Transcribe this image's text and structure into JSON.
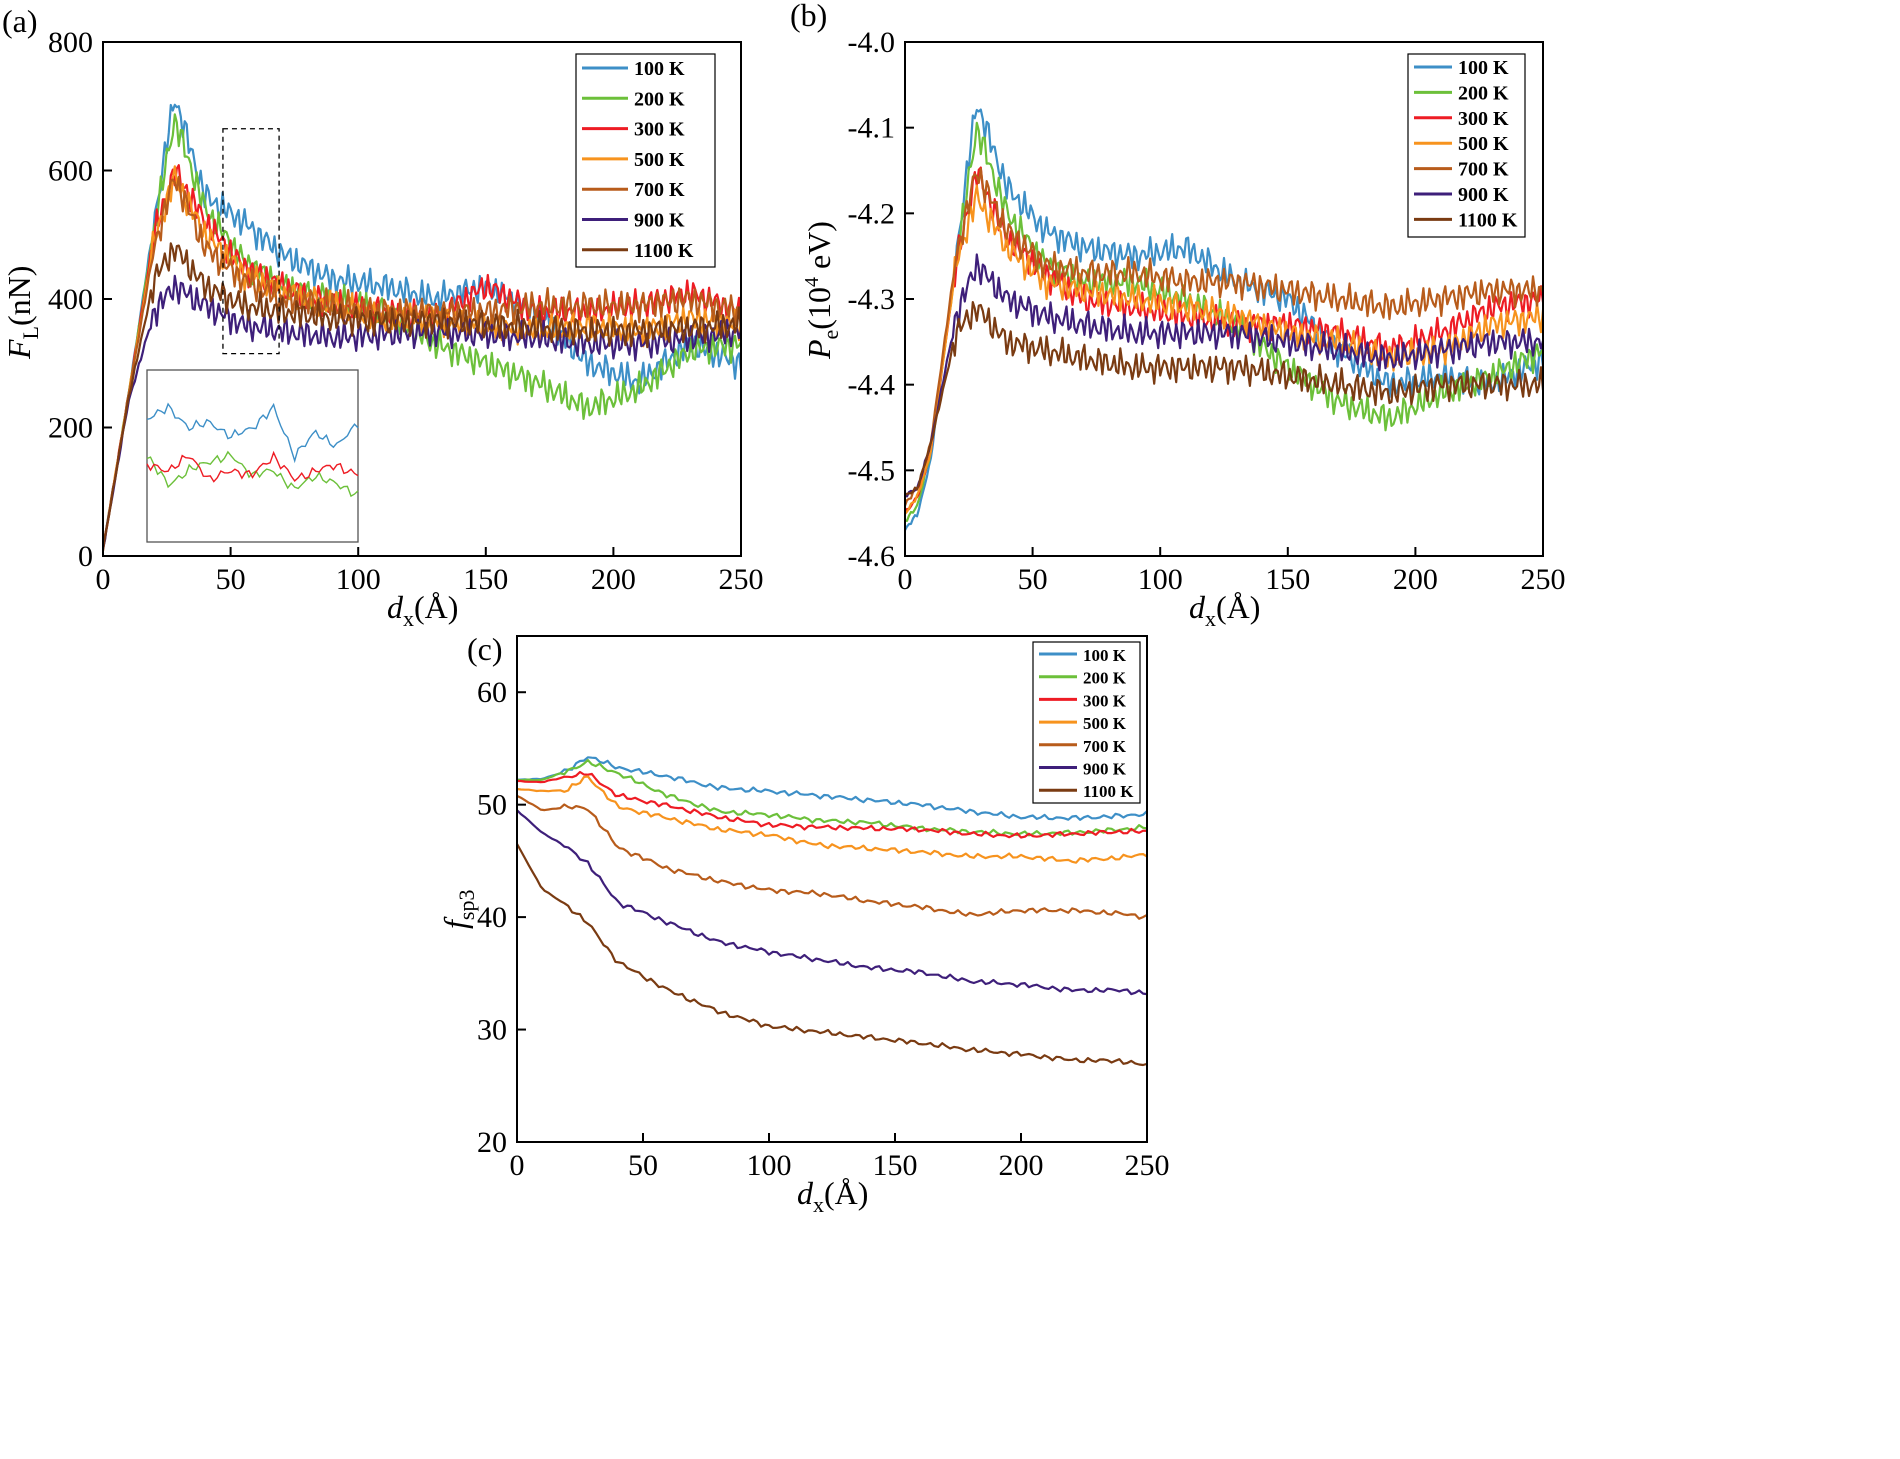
{
  "colors": {
    "100 K": "#3d8fc7",
    "200 K": "#6cc03a",
    "300 K": "#ee1c24",
    "500 K": "#f7931e",
    "700 K": "#b85c1b",
    "900 K": "#3e1f7a",
    "1100 K": "#7a3b12"
  },
  "chart_data": [
    {
      "panel_label": "(a)",
      "type": "line",
      "xlabel": "d",
      "xlabel_sub": "x",
      "xlabel_unit": "(Å)",
      "ylabel": "F",
      "ylabel_sub": "L",
      "ylabel_unit": "(nN)",
      "xlim": [
        0,
        250
      ],
      "ylim": [
        0,
        800
      ],
      "xticks": [
        "0",
        "50",
        "100",
        "150",
        "200",
        "250"
      ],
      "yticks": [
        "0",
        "200",
        "400",
        "600",
        "800"
      ],
      "legend_position": "top-right",
      "x": [
        0,
        10,
        20,
        28,
        40,
        55,
        70,
        90,
        110,
        130,
        150,
        170,
        190,
        210,
        230,
        250
      ],
      "series": [
        {
          "name": "100 K",
          "values": [
            10,
            250,
            520,
            715,
            560,
            520,
            470,
            430,
            420,
            400,
            420,
            380,
            300,
            270,
            330,
            300
          ]
        },
        {
          "name": "200 K",
          "values": [
            10,
            250,
            510,
            680,
            540,
            460,
            420,
            400,
            380,
            330,
            300,
            270,
            230,
            260,
            320,
            330
          ]
        },
        {
          "name": "300 K",
          "values": [
            10,
            250,
            500,
            600,
            520,
            450,
            420,
            390,
            380,
            370,
            420,
            380,
            380,
            390,
            410,
            380
          ]
        },
        {
          "name": "500 K",
          "values": [
            10,
            250,
            490,
            590,
            500,
            440,
            410,
            390,
            370,
            370,
            360,
            350,
            360,
            350,
            370,
            360
          ]
        },
        {
          "name": "700 K",
          "values": [
            10,
            250,
            480,
            590,
            480,
            430,
            400,
            390,
            380,
            380,
            380,
            390,
            390,
            390,
            400,
            380
          ]
        },
        {
          "name": "900 K",
          "values": [
            10,
            240,
            380,
            420,
            390,
            360,
            350,
            340,
            345,
            350,
            345,
            340,
            330,
            330,
            340,
            350
          ]
        },
        {
          "name": "1100 K",
          "values": [
            10,
            245,
            430,
            480,
            420,
            390,
            380,
            370,
            365,
            365,
            360,
            355,
            350,
            350,
            355,
            360
          ]
        }
      ],
      "inset": {
        "type": "line",
        "series": [
          {
            "name": "100 K",
            "values": [
              230,
              240,
              220,
              225,
              210,
              220,
              240,
              190,
              215,
              200,
              225
            ]
          },
          {
            "name": "200 K",
            "values": [
              190,
              160,
              175,
              185,
              190,
              170,
              175,
              155,
              170,
              160,
              150
            ]
          },
          {
            "name": "300 K",
            "values": [
              180,
              175,
              190,
              165,
              175,
              170,
              190,
              165,
              175,
              180,
              170
            ]
          }
        ]
      }
    },
    {
      "panel_label": "(b)",
      "type": "line",
      "xlabel": "d",
      "xlabel_sub": "x",
      "xlabel_unit": "(Å)",
      "ylabel": "P",
      "ylabel_sub": "e",
      "ylabel_unit_pre": "(10",
      "ylabel_unit_sup": "4",
      "ylabel_unit_post": " eV)",
      "xlim": [
        0,
        250
      ],
      "ylim": [
        -4.6,
        -4.0
      ],
      "xticks": [
        "0",
        "50",
        "100",
        "150",
        "200",
        "250"
      ],
      "yticks": [
        "-4.6",
        "-4.5",
        "-4.4",
        "-4.3",
        "-4.2",
        "-4.1",
        "-4.0"
      ],
      "legend_position": "top-right",
      "x": [
        0,
        5,
        10,
        20,
        28,
        40,
        55,
        70,
        90,
        110,
        130,
        150,
        170,
        190,
        210,
        230,
        250
      ],
      "series": [
        {
          "name": "100 K",
          "values": [
            -4.57,
            -4.55,
            -4.49,
            -4.25,
            -4.07,
            -4.17,
            -4.22,
            -4.24,
            -4.25,
            -4.24,
            -4.28,
            -4.3,
            -4.36,
            -4.4,
            -4.39,
            -4.4,
            -4.37
          ]
        },
        {
          "name": "200 K",
          "values": [
            -4.56,
            -4.54,
            -4.48,
            -4.26,
            -4.1,
            -4.2,
            -4.26,
            -4.28,
            -4.28,
            -4.3,
            -4.33,
            -4.38,
            -4.42,
            -4.44,
            -4.41,
            -4.39,
            -4.36
          ]
        },
        {
          "name": "300 K",
          "values": [
            -4.55,
            -4.53,
            -4.48,
            -4.26,
            -4.15,
            -4.23,
            -4.27,
            -4.3,
            -4.31,
            -4.32,
            -4.33,
            -4.33,
            -4.34,
            -4.36,
            -4.34,
            -4.31,
            -4.3
          ]
        },
        {
          "name": "500 K",
          "values": [
            -4.55,
            -4.53,
            -4.48,
            -4.26,
            -4.18,
            -4.24,
            -4.28,
            -4.29,
            -4.3,
            -4.31,
            -4.32,
            -4.34,
            -4.35,
            -4.37,
            -4.36,
            -4.33,
            -4.32
          ]
        },
        {
          "name": "700 K",
          "values": [
            -4.54,
            -4.52,
            -4.47,
            -4.25,
            -4.15,
            -4.22,
            -4.26,
            -4.27,
            -4.27,
            -4.28,
            -4.28,
            -4.29,
            -4.3,
            -4.31,
            -4.3,
            -4.29,
            -4.29
          ]
        },
        {
          "name": "900 K",
          "values": [
            -4.53,
            -4.52,
            -4.47,
            -4.32,
            -4.26,
            -4.3,
            -4.32,
            -4.33,
            -4.34,
            -4.34,
            -4.34,
            -4.35,
            -4.36,
            -4.37,
            -4.36,
            -4.35,
            -4.35
          ]
        },
        {
          "name": "1100 K",
          "values": [
            -4.53,
            -4.52,
            -4.47,
            -4.34,
            -4.31,
            -4.35,
            -4.36,
            -4.37,
            -4.38,
            -4.38,
            -4.38,
            -4.39,
            -4.4,
            -4.41,
            -4.4,
            -4.4,
            -4.4
          ]
        }
      ]
    },
    {
      "panel_label": "(c)",
      "type": "line",
      "xlabel": "d",
      "xlabel_sub": "x",
      "xlabel_unit": "(Å)",
      "ylabel": "f",
      "ylabel_sub": "sp3",
      "xlim": [
        0,
        250
      ],
      "ylim": [
        20,
        65
      ],
      "xticks": [
        "0",
        "50",
        "100",
        "150",
        "200",
        "250"
      ],
      "yticks": [
        "20",
        "30",
        "40",
        "50",
        "60"
      ],
      "legend_position": "top-right",
      "x": [
        0,
        10,
        20,
        28,
        40,
        60,
        80,
        100,
        120,
        140,
        160,
        180,
        200,
        220,
        240,
        250
      ],
      "series": [
        {
          "name": "100 K",
          "values": [
            52.2,
            52.3,
            53.0,
            54.3,
            53.3,
            52.5,
            51.5,
            51.2,
            50.8,
            50.4,
            50.0,
            49.4,
            48.9,
            48.8,
            49.0,
            49.2
          ]
        },
        {
          "name": "200 K",
          "values": [
            52.2,
            52.2,
            53.0,
            53.8,
            52.8,
            50.8,
            49.4,
            49.1,
            48.6,
            48.4,
            47.9,
            47.6,
            47.4,
            47.5,
            47.8,
            48.0
          ]
        },
        {
          "name": "300 K",
          "values": [
            52.1,
            52.0,
            52.5,
            52.8,
            50.8,
            49.9,
            48.9,
            48.2,
            48.0,
            47.9,
            47.8,
            47.4,
            47.2,
            47.4,
            47.6,
            47.6
          ]
        },
        {
          "name": "500 K",
          "values": [
            51.4,
            51.2,
            51.3,
            52.5,
            49.8,
            48.8,
            47.8,
            47.3,
            46.4,
            46.1,
            45.8,
            45.4,
            45.4,
            45.0,
            45.3,
            45.6
          ]
        },
        {
          "name": "700 K",
          "values": [
            50.8,
            49.5,
            49.8,
            49.7,
            46.2,
            44.3,
            43.2,
            42.4,
            42.1,
            41.4,
            40.9,
            40.2,
            40.6,
            40.6,
            40.3,
            40.0
          ]
        },
        {
          "name": "900 K",
          "values": [
            49.5,
            47.5,
            46.2,
            44.8,
            41.3,
            39.5,
            37.8,
            36.9,
            36.2,
            35.5,
            35.1,
            34.3,
            34.0,
            33.5,
            33.5,
            33.2
          ]
        },
        {
          "name": "1100 K",
          "values": [
            46.5,
            42.5,
            41.0,
            39.5,
            36.0,
            33.5,
            31.6,
            30.3,
            29.8,
            29.3,
            28.8,
            28.2,
            27.8,
            27.3,
            27.2,
            26.8
          ]
        }
      ]
    }
  ]
}
